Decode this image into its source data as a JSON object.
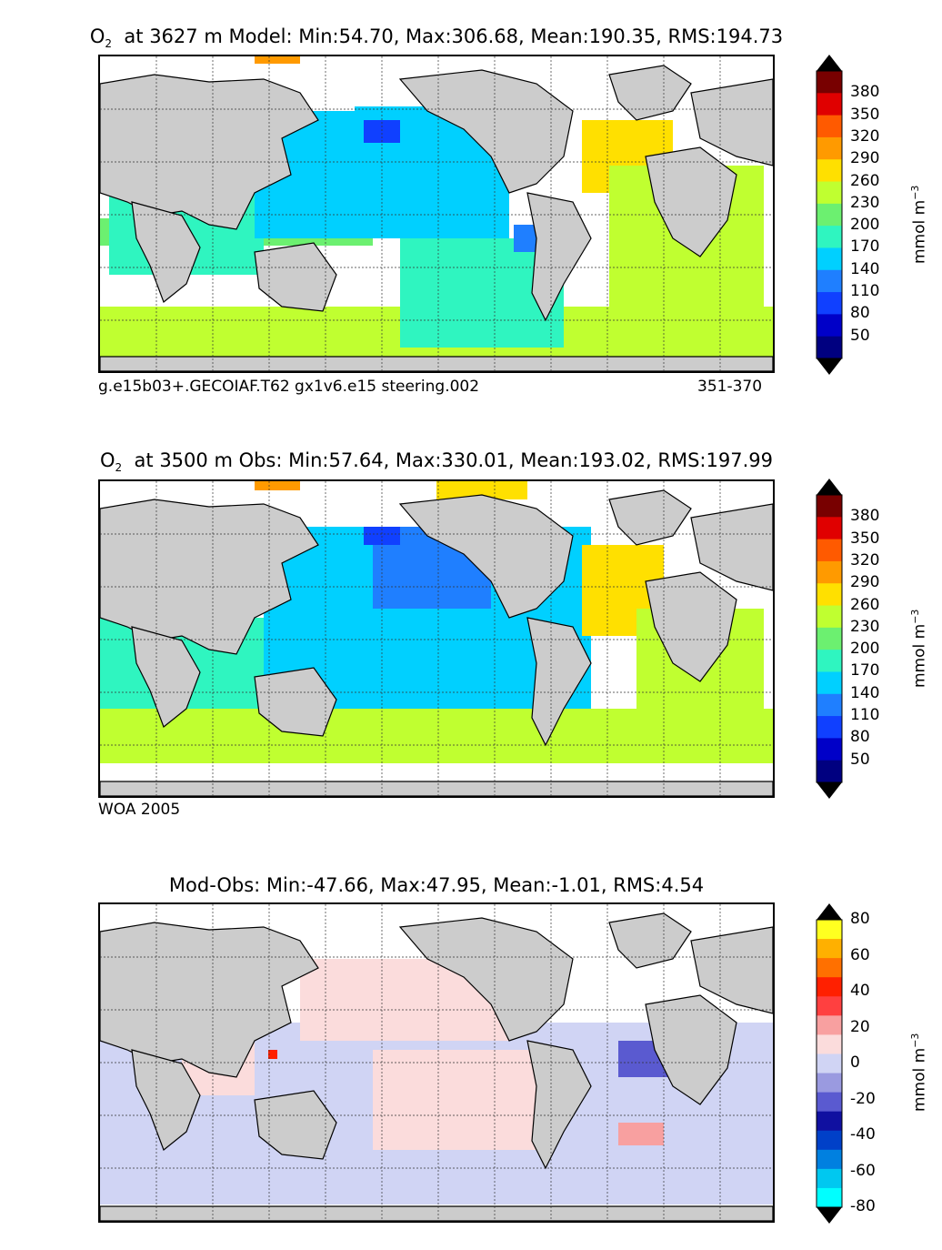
{
  "chart_data": [
    {
      "type": "heatmap",
      "title": "O₂ at 3627 m Model: Min:54.70, Max:306.68, Mean:190.35, RMS:194.73",
      "title_var": "O",
      "title_sub": "2",
      "title_rest": "at 3627 m Model: Min:54.70, Max:306.68, Mean:190.35, RMS:194.73",
      "stats": {
        "min": 54.7,
        "max": 306.68,
        "mean": 190.35,
        "rms": 194.73
      },
      "depth_m": 3627,
      "footer_left": "g.e15b03+.GECOIAF.T62 gx1v6.e15 steering.002",
      "footer_right": "351-370",
      "colorbar": {
        "ticks": [
          "50",
          "80",
          "110",
          "140",
          "170",
          "200",
          "230",
          "260",
          "290",
          "320",
          "350",
          "380"
        ],
        "colors": [
          "#000080",
          "#0000c8",
          "#1040ff",
          "#1f7fff",
          "#00d0ff",
          "#2ff5c0",
          "#6cf070",
          "#c0ff30",
          "#ffe000",
          "#ff9a00",
          "#ff5a00",
          "#e00000",
          "#780000"
        ],
        "unit_main": "mmol m",
        "unit_exp": "−3"
      }
    },
    {
      "type": "heatmap",
      "title": "O₂ at 3500 m Obs: Min:57.64, Max:330.01, Mean:193.02, RMS:197.99",
      "title_var": "O",
      "title_sub": "2",
      "title_rest": "at 3500 m Obs: Min:57.64, Max:330.01, Mean:193.02, RMS:197.99",
      "stats": {
        "min": 57.64,
        "max": 330.01,
        "mean": 193.02,
        "rms": 197.99
      },
      "depth_m": 3500,
      "footer_left": "WOA 2005",
      "colorbar": {
        "ticks": [
          "50",
          "80",
          "110",
          "140",
          "170",
          "200",
          "230",
          "260",
          "290",
          "320",
          "350",
          "380"
        ],
        "colors": [
          "#000080",
          "#0000c8",
          "#1040ff",
          "#1f7fff",
          "#00d0ff",
          "#2ff5c0",
          "#6cf070",
          "#c0ff30",
          "#ffe000",
          "#ff9a00",
          "#ff5a00",
          "#e00000",
          "#780000"
        ],
        "unit_main": "mmol m",
        "unit_exp": "−3"
      }
    },
    {
      "type": "heatmap",
      "title": "Mod-Obs: Min:-47.66, Max:47.95, Mean:-1.01, RMS:4.54",
      "stats": {
        "min": -47.66,
        "max": 47.95,
        "mean": -1.01,
        "rms": 4.54
      },
      "colorbar": {
        "ticks": [
          "-80",
          "-60",
          "-40",
          "-20",
          "0",
          "20",
          "40",
          "60",
          "80"
        ],
        "colors": [
          "#00ffff",
          "#00c8f0",
          "#0080e0",
          "#0040c8",
          "#1010a0",
          "#5a5ad0",
          "#9a9ae0",
          "#d0d4f4",
          "#fbdcdc",
          "#f8a0a0",
          "#ff4040",
          "#ff2000",
          "#ff7000",
          "#ffb000",
          "#ffff20"
        ],
        "unit_main": "mmol m",
        "unit_exp": "−3"
      }
    }
  ]
}
